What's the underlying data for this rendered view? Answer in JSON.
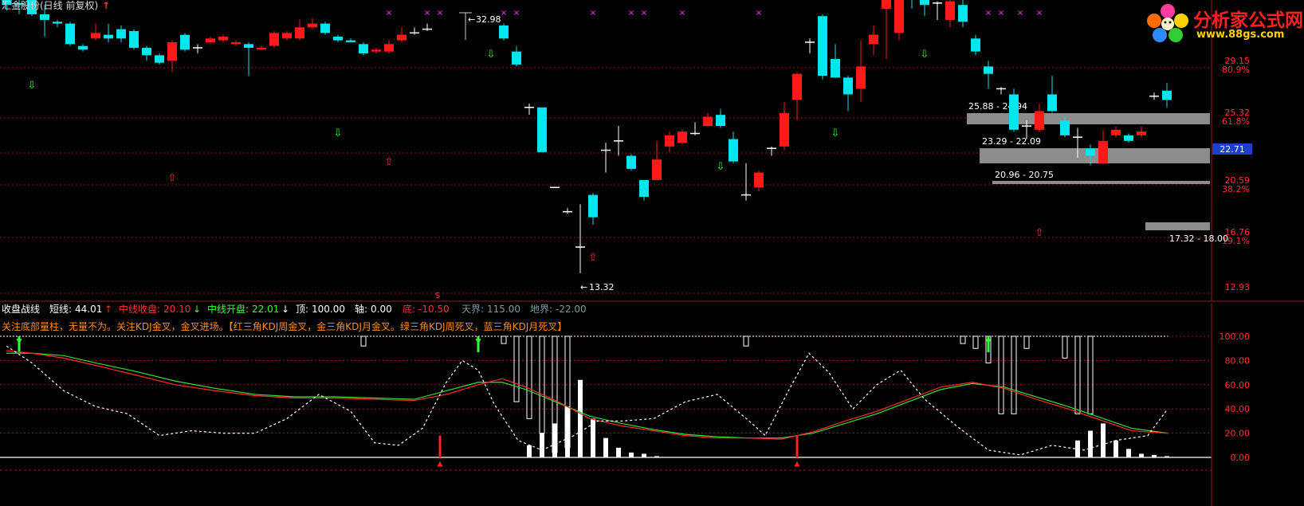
{
  "header": {
    "title": "汇金股份(日线 前复权)",
    "title_marker": "↑"
  },
  "logo": {
    "name": "分析家公式网",
    "url": "www.88gs.com"
  },
  "price_axis": {
    "labels": [
      {
        "price": "29.15",
        "pct": "80.9%"
      },
      {
        "price": "25.32",
        "pct": "61.8%"
      },
      {
        "price": "20.59",
        "pct": "38.2%"
      },
      {
        "price": "16.76",
        "pct": "19.1%"
      },
      {
        "price": "12.93",
        "pct": ""
      }
    ],
    "current_price": "22.71"
  },
  "annotations": {
    "high": "32.98",
    "low": "13.32",
    "ranges": [
      "25.88 - 24.94",
      "23.29 - 22.09",
      "20.96 - 20.75",
      "17.32 - 18.00"
    ],
    "marker_s": "$"
  },
  "indicator": {
    "name": "收盘战线",
    "items": [
      {
        "label": "短线:",
        "value": "44.01",
        "arrow": "↑",
        "color": "#ffffff",
        "value_color": "#ffffff",
        "arrow_color": "#ff3030"
      },
      {
        "label": "中线收盘:",
        "value": "20.10",
        "arrow": "↓",
        "color": "#ff3030",
        "value_color": "#ff3030",
        "arrow_color": "#33ff33"
      },
      {
        "label": "中线开盘:",
        "value": "22.01",
        "arrow": "↓",
        "color": "#33ff33",
        "value_color": "#33ff33",
        "arrow_color": "#ffffff"
      },
      {
        "label": "顶:",
        "value": "100.00",
        "arrow": "",
        "color": "#ffffff",
        "value_color": "#ffffff",
        "arrow_color": ""
      },
      {
        "label": "轴:",
        "value": "0.00",
        "arrow": "",
        "color": "#ffffff",
        "value_color": "#ffffff",
        "arrow_color": ""
      },
      {
        "label": "底:",
        "value": "-10.50",
        "arrow": "",
        "color": "#ff3030",
        "value_color": "#ff3030",
        "arrow_color": ""
      },
      {
        "label": "天界:",
        "value": "115.00",
        "arrow": "",
        "color": "#7a9aa0",
        "value_color": "#7a9aa0",
        "arrow_color": ""
      },
      {
        "label": "地界:",
        "value": "-22.00",
        "arrow": "",
        "color": "#7a9aa0",
        "value_color": "#7a9aa0",
        "arrow_color": ""
      }
    ],
    "note": "关注底部量柱，无量不为。关注KDJ金叉，金叉进场。【红三角KDJ周金叉，金三角KDJ月金叉。绿三角KDJ周死叉，蓝三角KDJ月死叉】",
    "axis_labels": [
      "100.00",
      "80.00",
      "60.00",
      "40.00",
      "20.00",
      "0.00"
    ]
  },
  "colors": {
    "up": "#ff1a1a",
    "down": "#00e5ee",
    "grid": "#a01818",
    "range_box": "#8c8c8c"
  }
}
